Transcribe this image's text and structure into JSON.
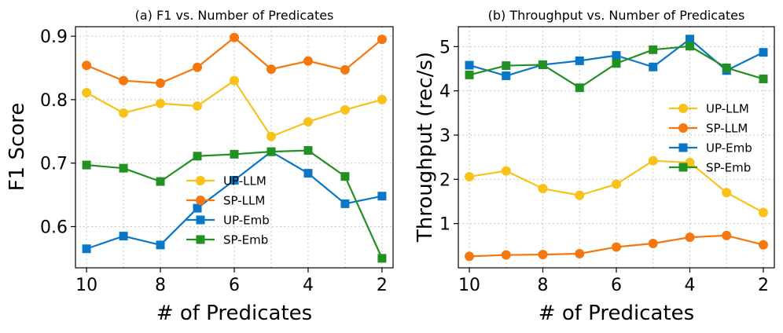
{
  "chart_data": [
    {
      "type": "line",
      "title": "(a) F1 vs. Number of Predicates",
      "xlabel": "# of Predicates",
      "ylabel": "F1 Score",
      "x": [
        10,
        9,
        8,
        7,
        6,
        5,
        4,
        3,
        2
      ],
      "x_inverted": true,
      "xlim": [
        10.3,
        1.7
      ],
      "xticks": [
        10,
        8,
        6,
        4,
        2
      ],
      "xtick_labels": [
        "10",
        "8",
        "6",
        "4",
        "2"
      ],
      "ylim": [
        0.535,
        0.915
      ],
      "yticks": [
        0.6,
        0.7,
        0.8,
        0.9
      ],
      "ytick_labels": [
        "0.6",
        "0.7",
        "0.8",
        "0.9"
      ],
      "grid": true,
      "legend_position": "center-right",
      "series": [
        {
          "name": "UP-LLM",
          "color": "#f8c21a",
          "marker": "circle",
          "values": [
            0.811,
            0.779,
            0.794,
            0.79,
            0.83,
            0.742,
            0.765,
            0.784,
            0.8
          ]
        },
        {
          "name": "SP-LLM",
          "color": "#f5780f",
          "marker": "circle",
          "values": [
            0.854,
            0.83,
            0.826,
            0.851,
            0.898,
            0.848,
            0.861,
            0.847,
            0.895
          ]
        },
        {
          "name": "UP-Emb",
          "color": "#0a76c6",
          "marker": "square",
          "values": [
            0.565,
            0.585,
            0.571,
            0.629,
            0.673,
            0.718,
            0.684,
            0.636,
            0.648
          ]
        },
        {
          "name": "SP-Emb",
          "color": "#229122",
          "marker": "square",
          "values": [
            0.697,
            0.692,
            0.671,
            0.711,
            0.714,
            0.718,
            0.72,
            0.679,
            0.55
          ]
        }
      ]
    },
    {
      "type": "line",
      "title": "(b) Throughput vs. Number of Predicates",
      "xlabel": "# of Predicates",
      "ylabel": "Throughput (rec/s)",
      "x": [
        10,
        9,
        8,
        7,
        6,
        5,
        4,
        3,
        2
      ],
      "x_inverted": true,
      "xlim": [
        10.3,
        1.7
      ],
      "xticks": [
        10,
        8,
        6,
        4,
        2
      ],
      "xtick_labels": [
        "10",
        "8",
        "6",
        "4",
        "2"
      ],
      "ylim": [
        0.0,
        5.45
      ],
      "yticks": [
        1,
        2,
        3,
        4,
        5
      ],
      "ytick_labels": [
        "1",
        "2",
        "3",
        "4",
        "5"
      ],
      "grid": true,
      "legend_position": "center-right",
      "series": [
        {
          "name": "UP-LLM",
          "color": "#f8c21a",
          "marker": "circle",
          "values": [
            2.06,
            2.19,
            1.79,
            1.64,
            1.89,
            2.42,
            2.38,
            1.7,
            1.25
          ]
        },
        {
          "name": "SP-LLM",
          "color": "#f5780f",
          "marker": "circle",
          "values": [
            0.26,
            0.29,
            0.3,
            0.32,
            0.47,
            0.55,
            0.69,
            0.73,
            0.52
          ]
        },
        {
          "name": "UP-Emb",
          "color": "#0a76c6",
          "marker": "square",
          "values": [
            4.58,
            4.34,
            4.59,
            4.68,
            4.8,
            4.54,
            5.17,
            4.46,
            4.87
          ]
        },
        {
          "name": "SP-Emb",
          "color": "#229122",
          "marker": "square",
          "values": [
            4.36,
            4.57,
            4.59,
            4.07,
            4.62,
            4.93,
            5.01,
            4.52,
            4.27
          ]
        }
      ]
    }
  ]
}
